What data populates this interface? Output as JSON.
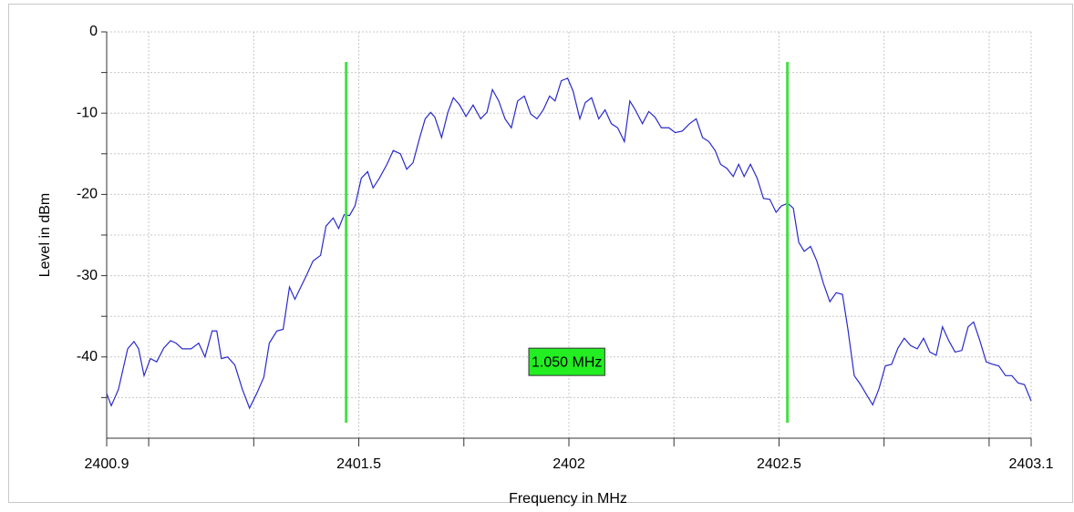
{
  "chart_data": {
    "type": "line",
    "x_label": "Frequency in MHz",
    "y_label": "Level in dBm",
    "xlim": [
      2400.9,
      2403.1
    ],
    "xticks": [
      2400.9,
      2401.5,
      2402,
      2402.5,
      2403.1
    ],
    "xminor": [
      2401,
      2401.25,
      2401.75,
      2402.25,
      2402.75,
      2403
    ],
    "ylim": [
      -50,
      0
    ],
    "yticks": [
      0,
      -10,
      -20,
      -30,
      -40
    ],
    "yminor": [
      -5,
      -15,
      -25,
      -35,
      -45
    ],
    "grid": true,
    "series": [
      {
        "color": "#2a2acc",
        "x": [
          2400.9,
          2400.911,
          2400.928,
          2400.95,
          2400.965,
          2400.976,
          2400.989,
          2401.004,
          2401.019,
          2401.036,
          2401.052,
          2401.065,
          2401.08,
          2401.101,
          2401.119,
          2401.134,
          2401.151,
          2401.162,
          2401.173,
          2401.188,
          2401.205,
          2401.223,
          2401.24,
          2401.257,
          2401.274,
          2401.287,
          2401.305,
          2401.32,
          2401.335,
          2401.348,
          2401.361,
          2401.376,
          2401.391,
          2401.409,
          2401.422,
          2401.439,
          2401.452,
          2401.465,
          2401.478,
          2401.491,
          2401.506,
          2401.521,
          2401.534,
          2401.549,
          2401.567,
          2401.582,
          2401.599,
          2401.614,
          2401.629,
          2401.645,
          2401.658,
          2401.671,
          2401.681,
          2401.697,
          2401.712,
          2401.725,
          2401.74,
          2401.755,
          2401.772,
          2401.79,
          2401.805,
          2401.818,
          2401.833,
          2401.848,
          2401.863,
          2401.878,
          2401.894,
          2401.909,
          2401.924,
          2401.939,
          2401.954,
          2401.967,
          2401.982,
          2401.997,
          2402.01,
          2402.026,
          2402.039,
          2402.054,
          2402.071,
          2402.086,
          2402.101,
          2402.116,
          2402.132,
          2402.145,
          2402.158,
          2402.175,
          2402.19,
          2402.205,
          2402.22,
          2402.238,
          2402.253,
          2402.27,
          2402.287,
          2402.303,
          2402.318,
          2402.333,
          2402.348,
          2402.361,
          2402.376,
          2402.391,
          2402.404,
          2402.417,
          2402.432,
          2402.448,
          2402.463,
          2402.478,
          2402.493,
          2402.506,
          2402.521,
          2402.534,
          2402.547,
          2402.56,
          2402.575,
          2402.59,
          2402.606,
          2402.621,
          2402.636,
          2402.651,
          2402.664,
          2402.679,
          2402.694,
          2402.71,
          2402.723,
          2402.738,
          2402.753,
          2402.768,
          2402.783,
          2402.798,
          2402.813,
          2402.829,
          2402.844,
          2402.859,
          2402.874,
          2402.889,
          2402.904,
          2402.919,
          2402.935,
          2402.95,
          2402.963,
          2402.978,
          2402.993,
          2403.008,
          2403.023,
          2403.039,
          2403.054,
          2403.069,
          2403.084,
          2403.1
        ],
        "values": [
          -44.5,
          -46,
          -44,
          -39,
          -38.1,
          -39,
          -42.3,
          -40.2,
          -40.6,
          -38.9,
          -38,
          -38.3,
          -39,
          -39,
          -38.3,
          -40,
          -36.8,
          -36.8,
          -40.2,
          -40,
          -41,
          -44,
          -46.3,
          -44.5,
          -42.5,
          -38.3,
          -36.8,
          -36.6,
          -31.4,
          -32.9,
          -31.5,
          -29.9,
          -28.2,
          -27.5,
          -23.9,
          -22.9,
          -24.2,
          -22.5,
          -22.6,
          -21.4,
          -18,
          -17.2,
          -19.2,
          -18,
          -16.3,
          -14.6,
          -15,
          -16.9,
          -16.1,
          -13,
          -10.7,
          -9.9,
          -10.5,
          -13,
          -9.9,
          -8.1,
          -9,
          -10.4,
          -9,
          -10.7,
          -9.9,
          -7.1,
          -8.5,
          -10.7,
          -11.8,
          -8.5,
          -7.9,
          -10.1,
          -10.7,
          -9.6,
          -7.9,
          -8.5,
          -6,
          -5.7,
          -7.3,
          -10.7,
          -8.7,
          -8.1,
          -10.7,
          -9.6,
          -11.3,
          -11.8,
          -13.5,
          -8.5,
          -9.6,
          -11.3,
          -9.8,
          -10.5,
          -11.8,
          -11.8,
          -12.4,
          -12.2,
          -11.3,
          -10.7,
          -13,
          -13.5,
          -14.6,
          -16.3,
          -16.8,
          -17.8,
          -16.3,
          -17.8,
          -16.3,
          -18,
          -20.5,
          -20.6,
          -22.2,
          -21.4,
          -21.1,
          -21.7,
          -25.9,
          -27,
          -26.4,
          -28.2,
          -31,
          -33.2,
          -32.1,
          -32.3,
          -36.6,
          -42.3,
          -43.4,
          -44.8,
          -45.9,
          -43.9,
          -41.1,
          -40.9,
          -38.9,
          -37.7,
          -38.6,
          -39,
          -37.7,
          -39.4,
          -39.8,
          -36.3,
          -38,
          -39.4,
          -39.2,
          -36.3,
          -35.7,
          -38,
          -40.6,
          -40.9,
          -41.1,
          -42.3,
          -42.3,
          -43.2,
          -43.4,
          -45.4
        ]
      }
    ],
    "markers": {
      "color": "#44e044",
      "x": [
        2401.47,
        2402.52
      ],
      "yrange": [
        -3.7,
        -48.1
      ]
    },
    "marker_label": {
      "text": "1.050 MHz",
      "color": "#22ee22",
      "y": -40.6
    }
  }
}
